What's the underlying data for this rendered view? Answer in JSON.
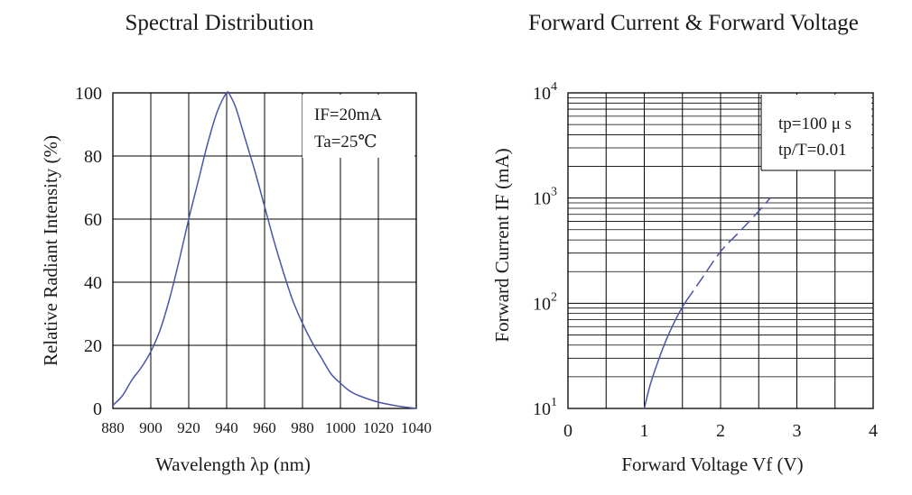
{
  "chart_data": [
    {
      "type": "line",
      "title": "Spectral Distribution",
      "xlabel": "Wavelength λp (nm)",
      "ylabel": "Relative Radiant Intensity (%)",
      "xlim": [
        880,
        1040
      ],
      "ylim": [
        0,
        100
      ],
      "x_ticks": [
        "880",
        "900",
        "920",
        "940",
        "960",
        "980",
        "1000",
        "1020",
        "1040"
      ],
      "y_ticks": [
        "0",
        "20",
        "40",
        "60",
        "80",
        "100"
      ],
      "grid": true,
      "annotations": [
        "IF=20mA",
        "Ta=25℃"
      ],
      "line_color": "#4a55a8",
      "series": [
        {
          "x": [
            880,
            885,
            890,
            895,
            900,
            905,
            910,
            915,
            920,
            925,
            930,
            935,
            940,
            942,
            945,
            950,
            955,
            960,
            965,
            970,
            975,
            980,
            985,
            990,
            995,
            1000,
            1005,
            1010,
            1020,
            1030,
            1040
          ],
          "values": [
            1,
            4,
            9,
            13,
            18,
            25,
            35,
            47,
            60,
            72,
            84,
            94,
            100,
            99,
            95,
            85,
            75,
            64,
            53,
            43,
            34,
            27,
            21,
            16,
            11,
            8,
            5.5,
            4,
            2,
            0.8,
            0
          ]
        }
      ]
    },
    {
      "type": "line",
      "title": "Forward Current & Forward Voltage",
      "xlabel": "Forward Voltage Vf (V)",
      "ylabel": "Forward Current IF (mA)",
      "xlim": [
        0,
        4
      ],
      "ylim": [
        10,
        10000
      ],
      "y_scale": "log",
      "x_ticks": [
        "0",
        "1",
        "2",
        "3",
        "4"
      ],
      "y_ticks": [
        "10",
        "10",
        "10",
        "10"
      ],
      "y_tick_exponents": [
        "1",
        "2",
        "3",
        "4"
      ],
      "grid": true,
      "annotations": [
        "tp=100 μ s",
        "tp/T=0.01"
      ],
      "line_color": "#4a55a8",
      "series": [
        {
          "style": "solid",
          "x": [
            1.0,
            1.08,
            1.18,
            1.3,
            1.42,
            1.5,
            1.55
          ],
          "values": [
            10,
            17,
            28,
            47,
            72,
            92,
            105
          ]
        },
        {
          "style": "dashed",
          "x": [
            1.55,
            1.75,
            2.0,
            2.25,
            2.5,
            2.65
          ],
          "values": [
            105,
            170,
            310,
            480,
            750,
            1000
          ]
        }
      ]
    }
  ]
}
